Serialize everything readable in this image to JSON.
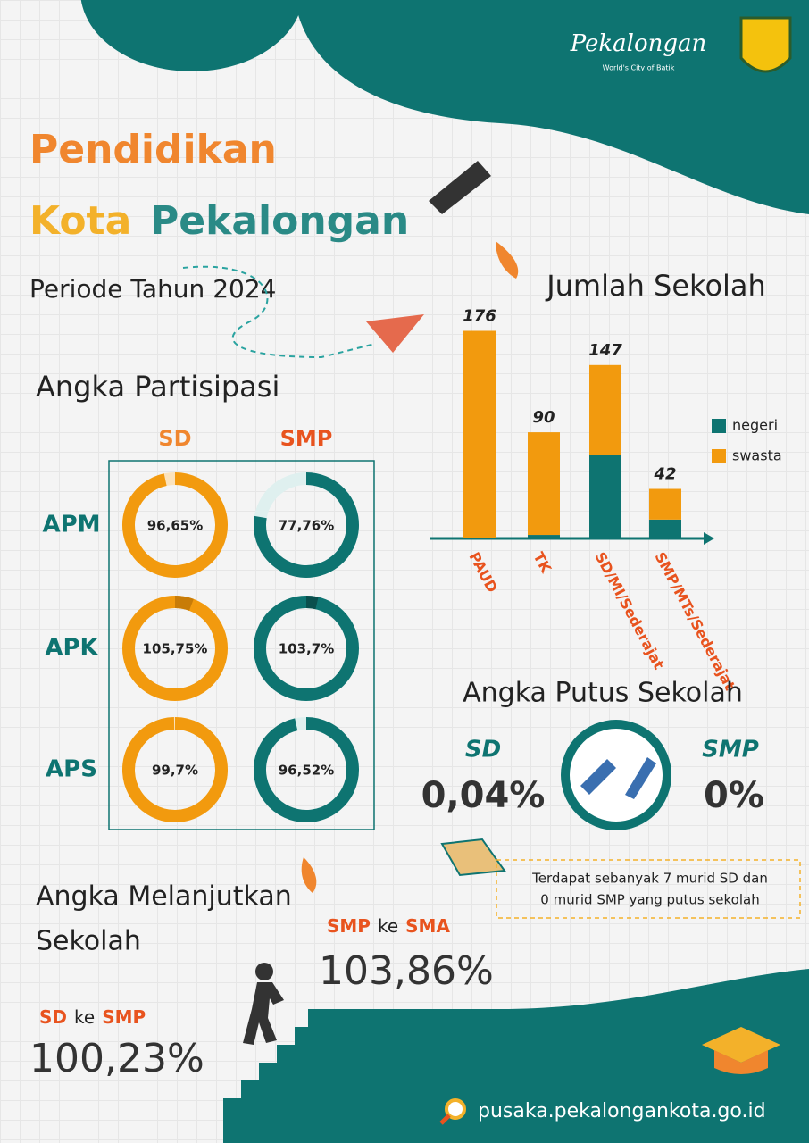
{
  "header": {
    "title_line1": "Pendidikan",
    "title_kota": "Kota",
    "title_city": "Pekalongan",
    "period": "Periode Tahun 2024",
    "logo_text": "Pekalongan",
    "logo_tagline": "World's City of Batik"
  },
  "participation": {
    "title": "Angka Partisipasi",
    "columns": [
      "SD",
      "SMP"
    ],
    "rows": [
      {
        "label": "APM",
        "values": [
          96.65,
          77.76
        ],
        "value_labels": [
          "96,65%",
          "77,76%"
        ]
      },
      {
        "label": "APK",
        "values": [
          105.75,
          103.7
        ],
        "value_labels": [
          "105,75%",
          "103,7%"
        ]
      },
      {
        "label": "APS",
        "values": [
          99.7,
          96.52
        ],
        "value_labels": [
          "99,7%",
          "96,52%"
        ]
      }
    ]
  },
  "chart_data": {
    "type": "stacked_bar",
    "title": "Jumlah Sekolah",
    "categories": [
      "PAUD",
      "TK",
      "SD/MI/Sederajat",
      "SMP/MTs/Sederajat"
    ],
    "series": [
      {
        "name": "negeri",
        "color": "#0e7471",
        "values": [
          0,
          3,
          71,
          16
        ]
      },
      {
        "name": "swasta",
        "color": "#f29a0e",
        "values": [
          176,
          87,
          76,
          26
        ]
      }
    ],
    "totals": [
      176,
      90,
      147,
      42
    ],
    "ylim": [
      0,
      190
    ]
  },
  "dropout": {
    "title": "Angka Putus Sekolah",
    "sd_label": "SD",
    "sd_value": "0,04%",
    "smp_label": "SMP",
    "smp_value": "0%",
    "note": [
      "Terdapat sebanyak 7 murid SD dan",
      "0 murid SMP yang putus sekolah"
    ]
  },
  "continuation": {
    "title": [
      "Angka Melanjutkan",
      "Sekolah"
    ],
    "items": [
      {
        "from": "SMP",
        "word": "ke",
        "to": "SMA",
        "value": "103,86%"
      },
      {
        "from": "SD",
        "word": "ke",
        "to": "SMP",
        "value": "100,23%"
      }
    ]
  },
  "footer": {
    "url": "pusaka.pekalongankota.go.id"
  }
}
